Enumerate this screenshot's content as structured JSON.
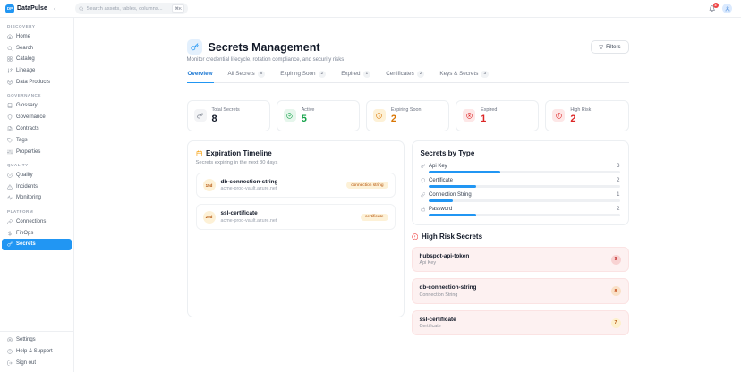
{
  "app": {
    "name": "DataPulse",
    "logo": "DP"
  },
  "topbar": {
    "search_placeholder": "Search assets, tables, columns...",
    "search_shortcut": "⌘K",
    "notification_count": "3"
  },
  "sidebar": {
    "sections": [
      {
        "label": "DISCOVERY",
        "items": [
          {
            "label": "Home",
            "icon": "home-icon"
          },
          {
            "label": "Search",
            "icon": "search-icon"
          },
          {
            "label": "Catalog",
            "icon": "grid-icon"
          },
          {
            "label": "Lineage",
            "icon": "branch-icon"
          },
          {
            "label": "Data Products",
            "icon": "box-icon"
          }
        ]
      },
      {
        "label": "GOVERNANCE",
        "items": [
          {
            "label": "Glossary",
            "icon": "book-icon"
          },
          {
            "label": "Governance",
            "icon": "shield-icon"
          },
          {
            "label": "Contracts",
            "icon": "file-icon"
          },
          {
            "label": "Tags",
            "icon": "tag-icon"
          },
          {
            "label": "Properties",
            "icon": "sliders-icon"
          }
        ]
      },
      {
        "label": "QUALITY",
        "items": [
          {
            "label": "Quality",
            "icon": "check-circle-icon"
          },
          {
            "label": "Incidents",
            "icon": "alert-triangle-icon"
          },
          {
            "label": "Monitoring",
            "icon": "activity-icon"
          }
        ]
      },
      {
        "label": "PLATFORM",
        "items": [
          {
            "label": "Connections",
            "icon": "link-icon"
          },
          {
            "label": "FinOps",
            "icon": "dollar-icon"
          },
          {
            "label": "Secrets",
            "icon": "key-icon",
            "active": true
          }
        ]
      }
    ],
    "footer": [
      {
        "label": "Settings",
        "icon": "gear-icon"
      },
      {
        "label": "Help & Support",
        "icon": "help-circle-icon"
      },
      {
        "label": "Sign out",
        "icon": "logout-icon"
      }
    ]
  },
  "page": {
    "title": "Secrets Management",
    "subtitle": "Monitor credential lifecycle, rotation compliance, and security risks",
    "filters_label": "Filters",
    "tabs": [
      {
        "label": "Overview"
      },
      {
        "label": "All Secrets",
        "count": "8"
      },
      {
        "label": "Expiring Soon",
        "count": "2"
      },
      {
        "label": "Expired",
        "count": "1"
      },
      {
        "label": "Certificates",
        "count": "2"
      },
      {
        "label": "Keys & Secrets",
        "count": "3"
      }
    ]
  },
  "stats": [
    {
      "label": "Total Secrets",
      "value": "8",
      "icon": "key-icon"
    },
    {
      "label": "Active",
      "value": "5",
      "icon": "check-circle-icon"
    },
    {
      "label": "Expiring Soon",
      "value": "2",
      "icon": "clock-icon"
    },
    {
      "label": "Expired",
      "value": "1",
      "icon": "x-circle-icon"
    },
    {
      "label": "High Risk",
      "value": "2",
      "icon": "alert-circle-icon"
    }
  ],
  "timeline": {
    "title": "Expiration Timeline",
    "subtitle": "Secrets expiring in the next 30 days",
    "items": [
      {
        "days": "15d",
        "name": "db-connection-string",
        "vault": "acme-prod-vault.azure.net",
        "tag": "connection string"
      },
      {
        "days": "25d",
        "name": "ssl-certificate",
        "vault": "acme-prod-vault.azure.net",
        "tag": "certificate"
      }
    ]
  },
  "by_type": {
    "title": "Secrets by Type",
    "rows": [
      {
        "label": "Api Key",
        "count": "3",
        "pct": 37.5,
        "icon": "key-icon"
      },
      {
        "label": "Certificate",
        "count": "2",
        "pct": 25,
        "icon": "shield-icon"
      },
      {
        "label": "Connection String",
        "count": "1",
        "pct": 12.5,
        "icon": "link-icon"
      },
      {
        "label": "Password",
        "count": "2",
        "pct": 25,
        "icon": "lock-icon"
      }
    ]
  },
  "high_risk": {
    "title": "High Risk Secrets",
    "items": [
      {
        "name": "hubspot-api-token",
        "type": "Api Key",
        "score": "9"
      },
      {
        "name": "db-connection-string",
        "type": "Connection String",
        "score": "8"
      },
      {
        "name": "ssl-certificate",
        "type": "Certificate",
        "score": "7"
      }
    ]
  },
  "colors": {
    "accent": "#2196f3",
    "green": "#16a34a",
    "amber": "#d97706",
    "red": "#dc2626",
    "notification_badge": "#ef4444"
  }
}
